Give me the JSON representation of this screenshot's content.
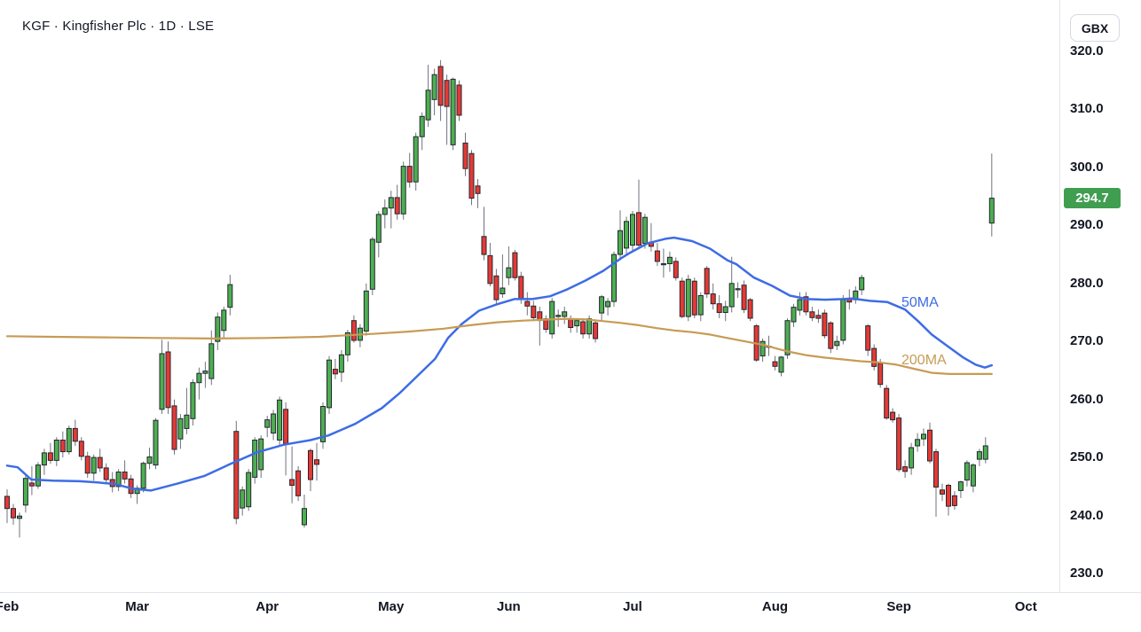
{
  "header": {
    "title": "KGF · Kingfisher Plc · 1D · LSE"
  },
  "currency_button": {
    "label": "GBX"
  },
  "price_axis": {
    "tick_values": [
      320,
      310,
      300,
      290,
      280,
      270,
      260,
      250,
      240,
      230
    ],
    "last_price": "294.7",
    "last_price_value": 294.7
  },
  "overlays": [
    {
      "name": "50MA",
      "color": "#3d6ce5"
    },
    {
      "name": "200MA",
      "color": "#c79b54"
    }
  ],
  "colors": {
    "up": "#4caf50",
    "down": "#e53935",
    "candle_border": "#23262d",
    "wick": "#70737e",
    "badge_bg": "#3f9e50",
    "text": "#131722",
    "separator": "#e1e4ea"
  },
  "chart_data": {
    "type": "candlestick",
    "symbol": "KGF",
    "name": "Kingfisher Plc",
    "interval": "1D",
    "exchange": "LSE",
    "currency": "GBX",
    "ylim": [
      226.8,
      321.4
    ],
    "grid": false,
    "legend_position": "none",
    "layout": {
      "y_top": 58,
      "price_top": 320,
      "ppu": 6.5444,
      "x0": 8,
      "dx": 6.98
    },
    "time_labels": [
      {
        "label": "Feb",
        "i": 0
      },
      {
        "label": "Mar",
        "i": 21
      },
      {
        "label": "Apr",
        "i": 42
      },
      {
        "label": "May",
        "i": 62
      },
      {
        "label": "Jun",
        "i": 81
      },
      {
        "label": "Jul",
        "i": 101
      },
      {
        "label": "Aug",
        "i": 124
      },
      {
        "label": "Sep",
        "i": 144
      },
      {
        "label": "Oct",
        "i": 164.5
      }
    ],
    "candles": [
      [
        243.3,
        244.5,
        238.7,
        241.2
      ],
      [
        241.2,
        242.0,
        238.4,
        239.6
      ],
      [
        239.5,
        240.5,
        236.2,
        239.9
      ],
      [
        241.8,
        247.0,
        240.5,
        246.4
      ],
      [
        245.6,
        248.5,
        243.5,
        245.1
      ],
      [
        245.1,
        249.2,
        244.6,
        248.7
      ],
      [
        248.7,
        251.5,
        247.0,
        250.8
      ],
      [
        250.8,
        252.5,
        248.9,
        249.5
      ],
      [
        249.5,
        253.5,
        248.5,
        253.0
      ],
      [
        253.0,
        254.5,
        250.0,
        251.0
      ],
      [
        251.0,
        255.5,
        250.5,
        255.0
      ],
      [
        255.0,
        256.5,
        252.0,
        252.8
      ],
      [
        252.8,
        253.5,
        249.5,
        250.2
      ],
      [
        250.2,
        251.0,
        246.5,
        247.3
      ],
      [
        247.3,
        250.5,
        246.0,
        250.0
      ],
      [
        250.0,
        251.5,
        247.5,
        248.2
      ],
      [
        248.2,
        249.0,
        245.5,
        246.2
      ],
      [
        246.2,
        247.5,
        244.0,
        245.0
      ],
      [
        245.0,
        248.0,
        244.2,
        247.5
      ],
      [
        247.5,
        249.5,
        245.5,
        246.3
      ],
      [
        246.3,
        247.0,
        243.0,
        243.8
      ],
      [
        243.8,
        245.2,
        242.0,
        244.7
      ],
      [
        244.7,
        249.3,
        244.0,
        249.0
      ],
      [
        249.0,
        251.7,
        248.0,
        250.1
      ],
      [
        248.7,
        256.8,
        248.0,
        256.4
      ],
      [
        258.3,
        270.3,
        257.5,
        267.9
      ],
      [
        268.2,
        270.0,
        257.5,
        258.6
      ],
      [
        258.9,
        260.0,
        250.5,
        251.4
      ],
      [
        253.2,
        257.5,
        251.5,
        256.7
      ],
      [
        255.0,
        262.0,
        254.0,
        257.3
      ],
      [
        256.7,
        263.5,
        255.5,
        262.9
      ],
      [
        262.9,
        265.5,
        260.0,
        264.5
      ],
      [
        264.5,
        266.5,
        262.0,
        264.9
      ],
      [
        263.6,
        271.9,
        262.5,
        269.6
      ],
      [
        270.0,
        275.0,
        268.5,
        274.2
      ],
      [
        271.9,
        276.0,
        270.5,
        275.4
      ],
      [
        275.9,
        281.5,
        274.5,
        279.8
      ],
      [
        254.5,
        256.3,
        238.5,
        239.5
      ],
      [
        241.3,
        245.0,
        240.0,
        244.4
      ],
      [
        241.5,
        248.0,
        240.8,
        247.4
      ],
      [
        246.6,
        253.5,
        245.5,
        253.0
      ],
      [
        247.9,
        253.8,
        246.5,
        253.2
      ],
      [
        255.2,
        257.2,
        253.5,
        256.5
      ],
      [
        254.2,
        258.2,
        253.0,
        257.5
      ],
      [
        253.0,
        260.5,
        252.0,
        259.9
      ],
      [
        258.3,
        259.5,
        246.9,
        252.4
      ],
      [
        246.2,
        251.9,
        242.1,
        245.2
      ],
      [
        247.7,
        248.5,
        242.5,
        243.4
      ],
      [
        238.4,
        243.6,
        237.9,
        241.2
      ],
      [
        251.2,
        251.5,
        244.2,
        246.2
      ],
      [
        249.6,
        252.5,
        246.0,
        248.8
      ],
      [
        252.7,
        259.5,
        251.5,
        258.8
      ],
      [
        258.6,
        267.5,
        257.5,
        266.8
      ],
      [
        265.2,
        267.0,
        263.5,
        264.4
      ],
      [
        264.7,
        268.5,
        263.0,
        267.7
      ],
      [
        267.7,
        272.0,
        266.5,
        271.5
      ],
      [
        273.6,
        274.5,
        269.8,
        270.2
      ],
      [
        270.2,
        273.0,
        269.0,
        272.3
      ],
      [
        271.8,
        280.0,
        271.0,
        278.7
      ],
      [
        279.0,
        288.0,
        278.0,
        287.6
      ],
      [
        287.1,
        292.5,
        284.5,
        291.9
      ],
      [
        291.9,
        294.5,
        289.5,
        293.0
      ],
      [
        293.0,
        296.0,
        289.5,
        294.8
      ],
      [
        294.8,
        297.0,
        291.0,
        292.0
      ],
      [
        292.0,
        301.0,
        291.0,
        300.2
      ],
      [
        300.2,
        302.5,
        296.5,
        297.5
      ],
      [
        297.5,
        306.0,
        296.0,
        305.3
      ],
      [
        305.3,
        309.5,
        303.0,
        308.8
      ],
      [
        308.2,
        317.7,
        307.0,
        313.3
      ],
      [
        311.7,
        317.0,
        309.0,
        316.0
      ],
      [
        317.4,
        318.5,
        308.0,
        310.7
      ],
      [
        315.0,
        316.0,
        303.9,
        310.5
      ],
      [
        303.9,
        315.5,
        303.0,
        315.2
      ],
      [
        314.2,
        315.0,
        308.0,
        309.0
      ],
      [
        304.2,
        306.0,
        298.5,
        299.8
      ],
      [
        302.4,
        303.0,
        293.5,
        294.7
      ],
      [
        296.8,
        298.0,
        293.0,
        295.5
      ],
      [
        288.1,
        293.2,
        284.0,
        285.0
      ],
      [
        284.8,
        287.0,
        279.5,
        280.0
      ],
      [
        281.3,
        282.5,
        276.5,
        277.2
      ],
      [
        278.2,
        285.0,
        277.5,
        279.2
      ],
      [
        281.0,
        286.4,
        279.7,
        282.7
      ],
      [
        285.3,
        285.8,
        280.5,
        281.0
      ],
      [
        281.2,
        282.0,
        276.5,
        277.4
      ],
      [
        276.9,
        278.5,
        274.5,
        276.1
      ],
      [
        276.1,
        277.0,
        273.5,
        274.1
      ],
      [
        275.1,
        276.0,
        269.3,
        273.6
      ],
      [
        273.9,
        274.5,
        271.5,
        272.1
      ],
      [
        271.3,
        277.5,
        270.5,
        276.9
      ],
      [
        274.3,
        275.5,
        272.5,
        274.5
      ],
      [
        274.3,
        276.0,
        273.0,
        275.1
      ],
      [
        273.9,
        274.5,
        271.5,
        272.4
      ],
      [
        272.7,
        274.0,
        271.5,
        273.6
      ],
      [
        273.4,
        274.0,
        270.5,
        271.3
      ],
      [
        271.3,
        274.5,
        270.5,
        273.9
      ],
      [
        273.2,
        273.5,
        269.8,
        270.5
      ],
      [
        274.9,
        278.0,
        273.5,
        277.7
      ],
      [
        276.0,
        277.5,
        274.5,
        276.9
      ],
      [
        276.9,
        285.5,
        276.0,
        285.0
      ],
      [
        285.0,
        292.6,
        284.0,
        289.1
      ],
      [
        286.1,
        291.5,
        285.0,
        290.7
      ],
      [
        286.6,
        292.5,
        285.5,
        291.9
      ],
      [
        292.2,
        297.9,
        286.0,
        286.6
      ],
      [
        286.9,
        292.0,
        286.0,
        291.4
      ],
      [
        287.1,
        290.4,
        285.5,
        286.4
      ],
      [
        285.6,
        287.0,
        283.0,
        283.8
      ],
      [
        283.3,
        286.0,
        281.0,
        283.4
      ],
      [
        283.4,
        285.5,
        282.0,
        284.5
      ],
      [
        283.8,
        284.5,
        280.5,
        281.0
      ],
      [
        280.4,
        281.0,
        274.0,
        274.3
      ],
      [
        274.3,
        281.5,
        273.5,
        280.7
      ],
      [
        280.4,
        281.0,
        274.0,
        274.6
      ],
      [
        274.6,
        278.5,
        273.5,
        277.9
      ],
      [
        282.6,
        283.0,
        277.5,
        278.2
      ],
      [
        278.2,
        280.0,
        275.5,
        276.5
      ],
      [
        276.5,
        278.0,
        274.0,
        275.0
      ],
      [
        275.0,
        277.0,
        273.5,
        276.0
      ],
      [
        276.0,
        284.6,
        275.0,
        280.0
      ],
      [
        279.0,
        280.2,
        277.5,
        279.1
      ],
      [
        279.7,
        280.5,
        274.9,
        275.5
      ],
      [
        277.2,
        277.5,
        273.5,
        274.0
      ],
      [
        272.7,
        273.0,
        266.5,
        266.8
      ],
      [
        267.5,
        270.5,
        266.5,
        270.0
      ],
      [
        269.0,
        271.0,
        267.5,
        269.2
      ],
      [
        266.5,
        267.5,
        265.0,
        265.7
      ],
      [
        264.7,
        267.5,
        264.0,
        267.3
      ],
      [
        267.7,
        274.0,
        267.0,
        273.6
      ],
      [
        273.4,
        276.5,
        272.5,
        275.9
      ],
      [
        275.4,
        278.5,
        274.5,
        277.2
      ],
      [
        277.7,
        278.5,
        274.5,
        275.1
      ],
      [
        275.1,
        276.0,
        273.5,
        274.1
      ],
      [
        274.5,
        275.5,
        273.2,
        274.0
      ],
      [
        274.9,
        275.5,
        270.5,
        271.0
      ],
      [
        273.2,
        273.5,
        268.0,
        268.8
      ],
      [
        269.3,
        271.0,
        268.5,
        270.0
      ],
      [
        270.2,
        278.0,
        269.5,
        277.2
      ],
      [
        277.4,
        279.0,
        275.5,
        276.8
      ],
      [
        277.2,
        279.5,
        276.5,
        278.7
      ],
      [
        278.9,
        281.5,
        278.0,
        281.0
      ],
      [
        272.7,
        273.0,
        267.5,
        268.5
      ],
      [
        268.8,
        269.5,
        265.0,
        265.7
      ],
      [
        266.2,
        267.0,
        262.0,
        262.6
      ],
      [
        261.9,
        262.5,
        256.5,
        256.8
      ],
      [
        257.8,
        258.5,
        256.0,
        256.5
      ],
      [
        256.8,
        257.5,
        247.5,
        247.9
      ],
      [
        248.4,
        249.5,
        246.5,
        247.6
      ],
      [
        248.2,
        252.5,
        247.0,
        251.7
      ],
      [
        252.0,
        254.2,
        251.0,
        253.1
      ],
      [
        253.2,
        255.0,
        252.0,
        254.0
      ],
      [
        254.7,
        256.0,
        249.0,
        249.4
      ],
      [
        251.0,
        251.5,
        239.8,
        244.9
      ],
      [
        244.4,
        245.5,
        242.5,
        243.7
      ],
      [
        245.2,
        245.5,
        240.0,
        241.6
      ],
      [
        243.4,
        244.2,
        241.0,
        241.7
      ],
      [
        244.3,
        246.0,
        243.0,
        245.8
      ],
      [
        246.1,
        249.5,
        245.0,
        249.1
      ],
      [
        245.1,
        249.0,
        244.0,
        248.7
      ],
      [
        249.7,
        251.5,
        248.5,
        251.0
      ],
      [
        249.7,
        253.5,
        249.0,
        252.0
      ],
      [
        290.4,
        302.4,
        288.1,
        294.7
      ]
    ],
    "ma50": [
      [
        0,
        248.6
      ],
      [
        1.7,
        248.3
      ],
      [
        3.9,
        246.2
      ],
      [
        7.4,
        246.0
      ],
      [
        11.7,
        245.9
      ],
      [
        14.6,
        245.7
      ],
      [
        17.5,
        245.4
      ],
      [
        20.3,
        244.6
      ],
      [
        23.2,
        244.3
      ],
      [
        27.5,
        245.5
      ],
      [
        31.8,
        246.8
      ],
      [
        36.1,
        248.9
      ],
      [
        40.4,
        250.9
      ],
      [
        44.7,
        252.2
      ],
      [
        49,
        253.0
      ],
      [
        51.9,
        253.8
      ],
      [
        56.2,
        255.8
      ],
      [
        60.5,
        258.5
      ],
      [
        63.3,
        261.0
      ],
      [
        66.2,
        264.0
      ],
      [
        69.1,
        267.0
      ],
      [
        71.2,
        270.6
      ],
      [
        73.4,
        273.0
      ],
      [
        76.2,
        275.3
      ],
      [
        79.1,
        276.4
      ],
      [
        81.9,
        277.3
      ],
      [
        84.8,
        277.3
      ],
      [
        87.7,
        277.8
      ],
      [
        90.5,
        279.0
      ],
      [
        93.4,
        280.5
      ],
      [
        96.3,
        282.2
      ],
      [
        99.1,
        284.3
      ],
      [
        100.6,
        285.3
      ],
      [
        103.4,
        286.9
      ],
      [
        106.3,
        287.7
      ],
      [
        107.7,
        287.9
      ],
      [
        110.6,
        287.3
      ],
      [
        113.5,
        286.0
      ],
      [
        116.3,
        284.0
      ],
      [
        117.8,
        283.3
      ],
      [
        120.6,
        281.0
      ],
      [
        123.5,
        279.6
      ],
      [
        126.4,
        277.9
      ],
      [
        129.2,
        277.3
      ],
      [
        132.1,
        277.2
      ],
      [
        135,
        277.3
      ],
      [
        136.4,
        277.4
      ],
      [
        139.3,
        277.0
      ],
      [
        142.1,
        276.8
      ],
      [
        145,
        275.5
      ],
      [
        147.1,
        273.5
      ],
      [
        149.3,
        271.2
      ],
      [
        152.1,
        269.0
      ],
      [
        154.3,
        267.3
      ],
      [
        156.4,
        266.0
      ],
      [
        157.9,
        265.5
      ],
      [
        159,
        265.9
      ]
    ],
    "ma200": [
      [
        0,
        270.9
      ],
      [
        7.4,
        270.8
      ],
      [
        16,
        270.7
      ],
      [
        24.6,
        270.6
      ],
      [
        33.2,
        270.5
      ],
      [
        41.8,
        270.6
      ],
      [
        50.4,
        270.8
      ],
      [
        59,
        271.3
      ],
      [
        64.8,
        271.7
      ],
      [
        70.5,
        272.2
      ],
      [
        74.8,
        272.8
      ],
      [
        79.1,
        273.3
      ],
      [
        83.4,
        273.6
      ],
      [
        87.7,
        273.8
      ],
      [
        90.5,
        273.9
      ],
      [
        93.4,
        273.8
      ],
      [
        96.3,
        273.5
      ],
      [
        99.1,
        273.2
      ],
      [
        102,
        272.8
      ],
      [
        104.9,
        272.3
      ],
      [
        107.7,
        271.9
      ],
      [
        110.6,
        271.6
      ],
      [
        113.5,
        271.2
      ],
      [
        116.3,
        270.6
      ],
      [
        119.2,
        270.0
      ],
      [
        122.1,
        269.4
      ],
      [
        124.9,
        268.6
      ],
      [
        126.4,
        268.2
      ],
      [
        129.2,
        267.6
      ],
      [
        132.1,
        267.2
      ],
      [
        135,
        266.9
      ],
      [
        137.8,
        266.6
      ],
      [
        140.7,
        266.4
      ],
      [
        143.6,
        266.0
      ],
      [
        146.4,
        265.3
      ],
      [
        149.3,
        264.6
      ],
      [
        152.1,
        264.4
      ],
      [
        155,
        264.4
      ],
      [
        157.9,
        264.4
      ],
      [
        159,
        264.4
      ]
    ]
  }
}
